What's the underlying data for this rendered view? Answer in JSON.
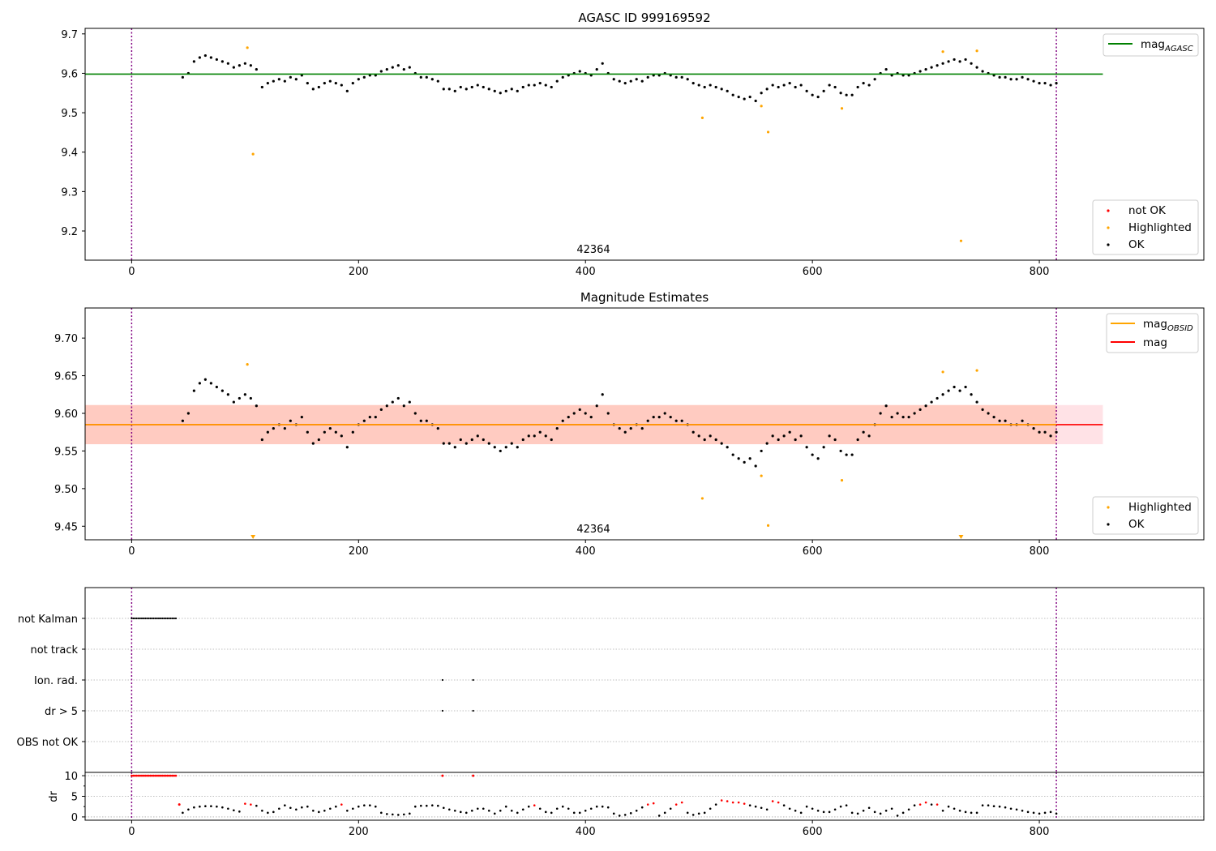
{
  "chart_data": [
    {
      "type": "scatter",
      "title": "AGASC ID 999169592",
      "xlim": [
        -41,
        945
      ],
      "ylim": [
        9.126,
        9.714
      ],
      "xticks": [
        0,
        200,
        400,
        600,
        800
      ],
      "yticks": [
        "9.2",
        "9.3",
        "9.4",
        "9.5",
        "9.6",
        "9.7"
      ],
      "annotation": {
        "text": "42364",
        "x": 407
      },
      "vlines": [
        0,
        815
      ],
      "reference_line": {
        "label": "mag",
        "label_sub": "AGASC",
        "value": 9.598,
        "x_range": [
          -41,
          856
        ],
        "color": "#008000"
      },
      "legend_upper": "top-right",
      "legend_lower": "bottom-right",
      "legend_points": [
        "not OK",
        "Highlighted",
        "OK"
      ],
      "ok_points": {
        "x_start": 45,
        "x_step": 5,
        "y": [
          9.59,
          9.6,
          9.63,
          9.64,
          9.645,
          9.64,
          9.635,
          9.63,
          9.625,
          9.615,
          9.62,
          9.625,
          9.62,
          9.61,
          9.565,
          9.575,
          9.58,
          9.585,
          9.58,
          9.59,
          9.585,
          9.595,
          9.575,
          9.56,
          9.565,
          9.575,
          9.58,
          9.575,
          9.57,
          9.555,
          9.575,
          9.585,
          9.59,
          9.595,
          9.595,
          9.605,
          9.61,
          9.615,
          9.62,
          9.61,
          9.615,
          9.6,
          9.59,
          9.59,
          9.585,
          9.58,
          9.56,
          9.56,
          9.555,
          9.565,
          9.56,
          9.565,
          9.57,
          9.565,
          9.56,
          9.555,
          9.55,
          9.555,
          9.56,
          9.555,
          9.565,
          9.57,
          9.57,
          9.575,
          9.57,
          9.565,
          9.58,
          9.59,
          9.595,
          9.6,
          9.605,
          9.6,
          9.595,
          9.61,
          9.625,
          9.6,
          9.585,
          9.58,
          9.575,
          9.58,
          9.585,
          9.58,
          9.59,
          9.595,
          9.595,
          9.6,
          9.595,
          9.59,
          9.59,
          9.585,
          9.575,
          9.57,
          9.565,
          9.57,
          9.565,
          9.56,
          9.555,
          9.545,
          9.54,
          9.535,
          9.54,
          9.53,
          9.55,
          9.56,
          9.57,
          9.565,
          9.57,
          9.575,
          9.565,
          9.57,
          9.555,
          9.545,
          9.54,
          9.555,
          9.57,
          9.565,
          9.55,
          9.545,
          9.545,
          9.565,
          9.575,
          9.57,
          9.585,
          9.6,
          9.61,
          9.595,
          9.6,
          9.595,
          9.595,
          9.6,
          9.605,
          9.61,
          9.615,
          9.62,
          9.625,
          9.63,
          9.635,
          9.63,
          9.635,
          9.625,
          9.615,
          9.605,
          9.6,
          9.595,
          9.59,
          9.59,
          9.585,
          9.585,
          9.59,
          9.585,
          9.58,
          9.575,
          9.575,
          9.57,
          9.575
        ]
      },
      "highlighted_points": {
        "x": [
          102,
          107,
          503,
          555,
          561,
          626,
          715,
          731,
          745
        ],
        "y": [
          9.665,
          9.395,
          9.487,
          9.517,
          9.451,
          9.511,
          9.655,
          9.175,
          9.657
        ]
      }
    },
    {
      "type": "scatter",
      "title": "Magnitude Estimates",
      "xlim": [
        -41,
        945
      ],
      "ylim": [
        9.432,
        9.74
      ],
      "xticks": [
        0,
        200,
        400,
        600,
        800
      ],
      "yticks": [
        "9.45",
        "9.50",
        "9.55",
        "9.60",
        "9.65",
        "9.70"
      ],
      "annotation": {
        "text": "42364",
        "x": 407
      },
      "vlines": [
        0,
        815
      ],
      "mag_obsid": {
        "label": "mag",
        "label_sub": "OBSID",
        "value": 9.585,
        "color": "#ffa500"
      },
      "mag": {
        "label": "mag",
        "value": 9.585,
        "band": [
          9.559,
          9.611
        ],
        "x_range": [
          -41,
          856
        ],
        "color": "#ff0000"
      },
      "legend_points": [
        "Highlighted",
        "OK"
      ],
      "out_of_range_markers_x": [
        107,
        731
      ]
    },
    {
      "type": "scatter",
      "categories": [
        "OBS not OK",
        "dr > 5",
        "Ion. rad.",
        "not track",
        "not Kalman"
      ],
      "not_kalman_x": {
        "start": 0,
        "end": 40,
        "step": 1.5
      },
      "ion_rad_x": [
        274,
        301
      ],
      "dr_gt5_x": [
        274,
        301
      ]
    },
    {
      "type": "scatter",
      "ylabel": "dr",
      "ylim": [
        -0.8,
        10.8
      ],
      "yticks": [
        "0",
        "5",
        "10"
      ],
      "xticks": [
        0,
        200,
        400,
        600,
        800
      ],
      "dr": {
        "x_start": 45,
        "x_step": 5,
        "y": [
          1.0,
          1.8,
          2.3,
          2.5,
          2.6,
          2.6,
          2.5,
          2.3,
          2.0,
          1.6,
          1.3,
          3.2,
          3.0,
          2.7,
          1.5,
          1.0,
          1.2,
          2.0,
          2.8,
          2.2,
          1.8,
          2.3,
          2.5,
          1.5,
          1.2,
          1.5,
          2.0,
          2.5,
          3.0,
          1.5,
          2.0,
          2.5,
          2.8,
          2.8,
          2.5,
          1.0,
          0.7,
          0.6,
          0.5,
          0.6,
          0.8,
          2.5,
          2.7,
          2.7,
          2.8,
          2.7,
          2.2,
          1.8,
          1.5,
          1.2,
          1.0,
          1.5,
          2.0,
          2.0,
          1.5,
          0.8,
          1.5,
          2.5,
          1.5,
          1.0,
          1.8,
          2.5,
          2.8,
          2.0,
          1.2,
          1.0,
          2.0,
          2.5,
          2.0,
          1.0,
          1.0,
          1.5,
          2.0,
          2.5,
          2.5,
          2.3,
          0.8,
          0.3,
          0.5,
          0.9,
          1.5,
          2.3,
          3.0,
          3.3,
          0.3,
          1.0,
          2.0,
          3.0,
          3.5,
          1.0,
          0.5,
          0.8,
          1.0,
          2.0,
          3.0,
          4.0,
          3.8,
          3.5,
          3.5,
          3.2,
          2.8,
          2.5,
          2.2,
          1.8,
          3.8,
          3.5,
          2.8,
          2.0,
          1.5,
          1.0,
          2.5,
          2.0,
          1.5,
          1.2,
          1.2,
          1.8,
          2.5,
          2.8,
          1.0,
          0.8,
          1.5,
          2.2,
          1.2,
          0.8,
          1.5,
          2.0,
          0.3,
          1.0,
          1.8,
          2.8,
          3.0,
          3.5,
          3.0,
          3.0,
          1.5,
          2.5,
          2.0,
          1.5,
          1.2,
          1.0,
          1.0,
          2.8,
          2.8,
          2.6,
          2.5,
          2.3,
          2.0,
          1.8,
          1.5,
          1.2,
          1.0,
          0.8,
          1.0,
          1.2,
          0.8
        ]
      },
      "dr_not_ok_x": [
        100,
        105,
        185,
        355,
        455,
        460,
        480,
        485,
        520,
        525,
        530,
        535,
        540,
        565,
        570,
        695,
        700,
        710
      ],
      "dr_capped_not_ok": {
        "value": 10,
        "x_range": [
          0,
          40
        ],
        "extra_x": [
          274,
          301
        ]
      },
      "extra_not_ok": {
        "x": [
          42
        ],
        "y": [
          3.0
        ]
      }
    }
  ]
}
